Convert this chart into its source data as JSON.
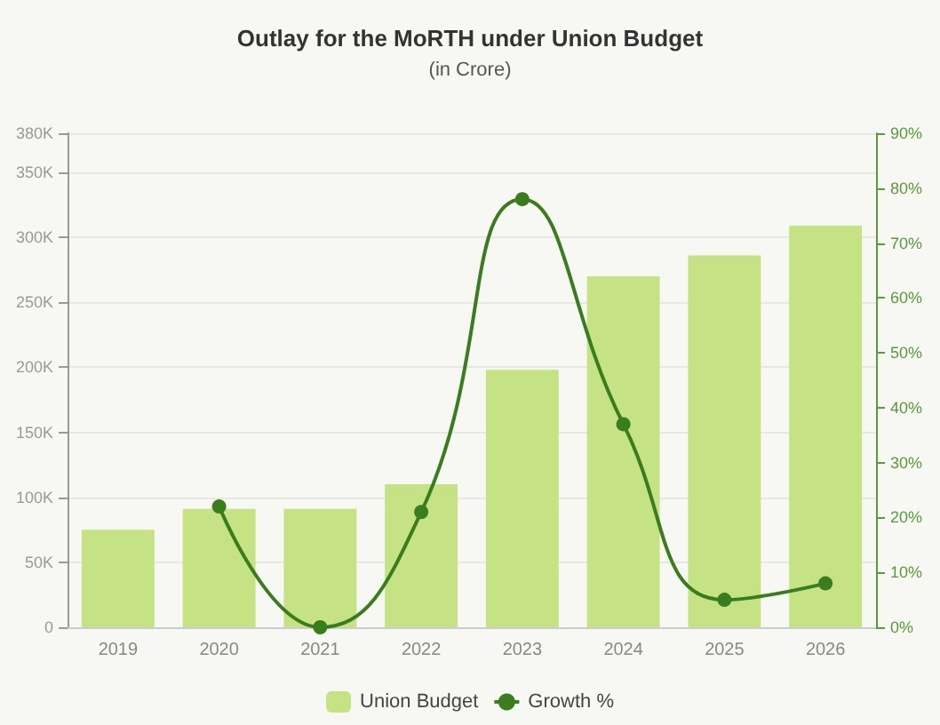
{
  "chart_data": {
    "type": "bar",
    "title": "Outlay for the MoRTH under Union Budget",
    "subtitle": "(in Crore)",
    "categories": [
      "2019",
      "2020",
      "2021",
      "2022",
      "2023",
      "2024",
      "2025",
      "2026"
    ],
    "series": [
      {
        "name": "Union Budget",
        "color": "#c5e384",
        "values": [
          75000,
          91000,
          91000,
          110000,
          198000,
          270000,
          286000,
          309000
        ]
      },
      {
        "name": "Growth %",
        "type": "line",
        "axis": "y2",
        "color": "#3a7d1e",
        "marker": "circle",
        "values": [
          null,
          22,
          0,
          21,
          78,
          37,
          5,
          8
        ]
      }
    ],
    "ylim": [
      0,
      380000
    ],
    "yticks": [
      {
        "value": 0,
        "label": "0"
      },
      {
        "value": 50000,
        "label": "50K"
      },
      {
        "value": 100000,
        "label": "100K"
      },
      {
        "value": 150000,
        "label": "150K"
      },
      {
        "value": 200000,
        "label": "200K"
      },
      {
        "value": 250000,
        "label": "250K"
      },
      {
        "value": 300000,
        "label": "300K"
      },
      {
        "value": 350000,
        "label": "350K"
      },
      {
        "value": 380000,
        "label": "380K"
      }
    ],
    "y2lim": [
      0,
      90
    ],
    "y2ticks": [
      {
        "value": 0,
        "label": "0%"
      },
      {
        "value": 10,
        "label": "10%"
      },
      {
        "value": 20,
        "label": "20%"
      },
      {
        "value": 30,
        "label": "30%"
      },
      {
        "value": 40,
        "label": "40%"
      },
      {
        "value": 50,
        "label": "50%"
      },
      {
        "value": 60,
        "label": "60%"
      },
      {
        "value": 70,
        "label": "70%"
      },
      {
        "value": 80,
        "label": "80%"
      },
      {
        "value": 90,
        "label": "90%"
      }
    ],
    "grid": "y",
    "legend": "bottom"
  }
}
